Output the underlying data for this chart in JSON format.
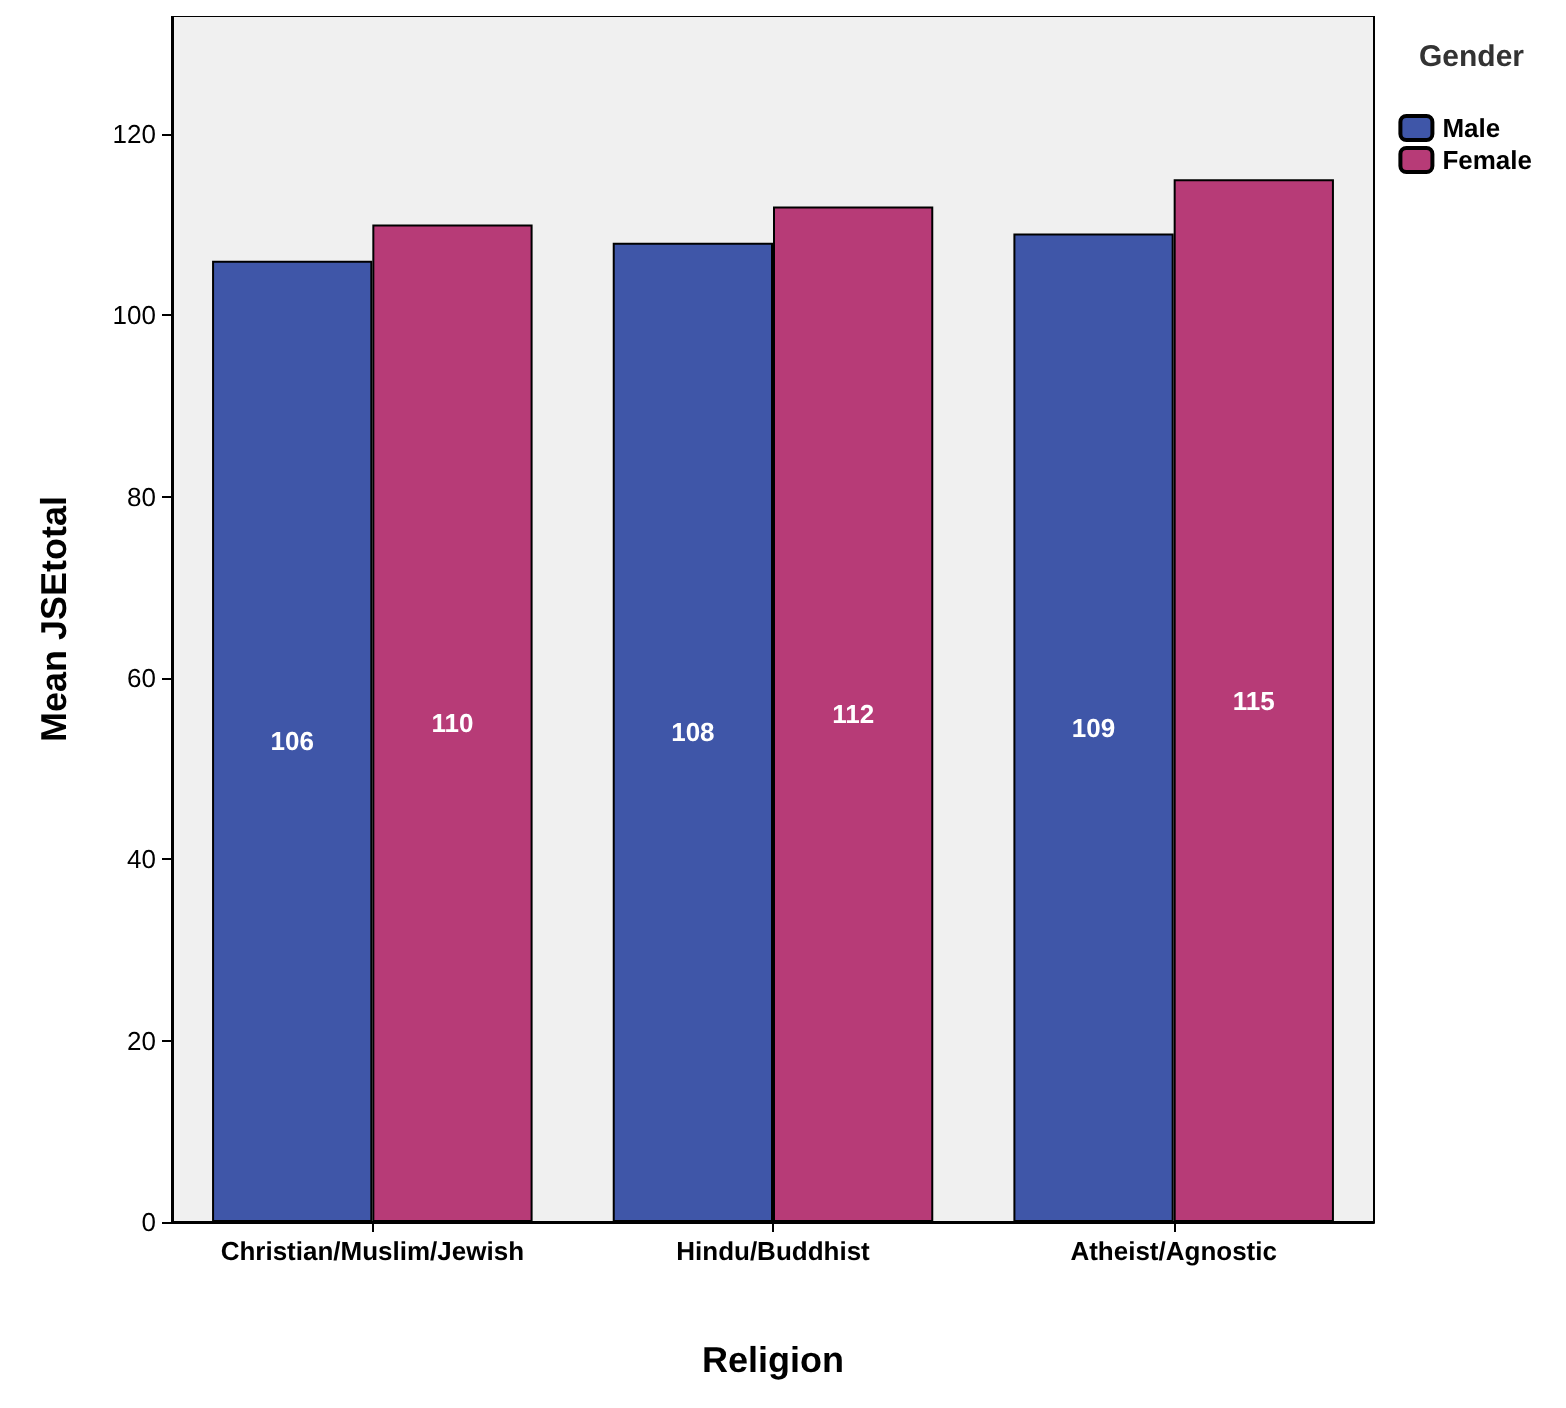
{
  "chart_data": {
    "type": "bar",
    "xlabel": "Religion",
    "ylabel": "Mean JSEtotal",
    "legend_title": "Gender",
    "categories": [
      "Christian/Muslim/Jewish",
      "Hindu/Buddhist",
      "Atheist/Agnostic"
    ],
    "series": [
      {
        "name": "Male",
        "color": "#3f56a8",
        "values": [
          106,
          108,
          109
        ]
      },
      {
        "name": "Female",
        "color": "#b73b77",
        "values": [
          110,
          112,
          115
        ]
      }
    ],
    "ylim": [
      0,
      133
    ],
    "yticks": [
      0,
      20,
      40,
      60,
      80,
      100,
      120
    ],
    "data_labels": true,
    "grid": false,
    "legend": "top right"
  }
}
